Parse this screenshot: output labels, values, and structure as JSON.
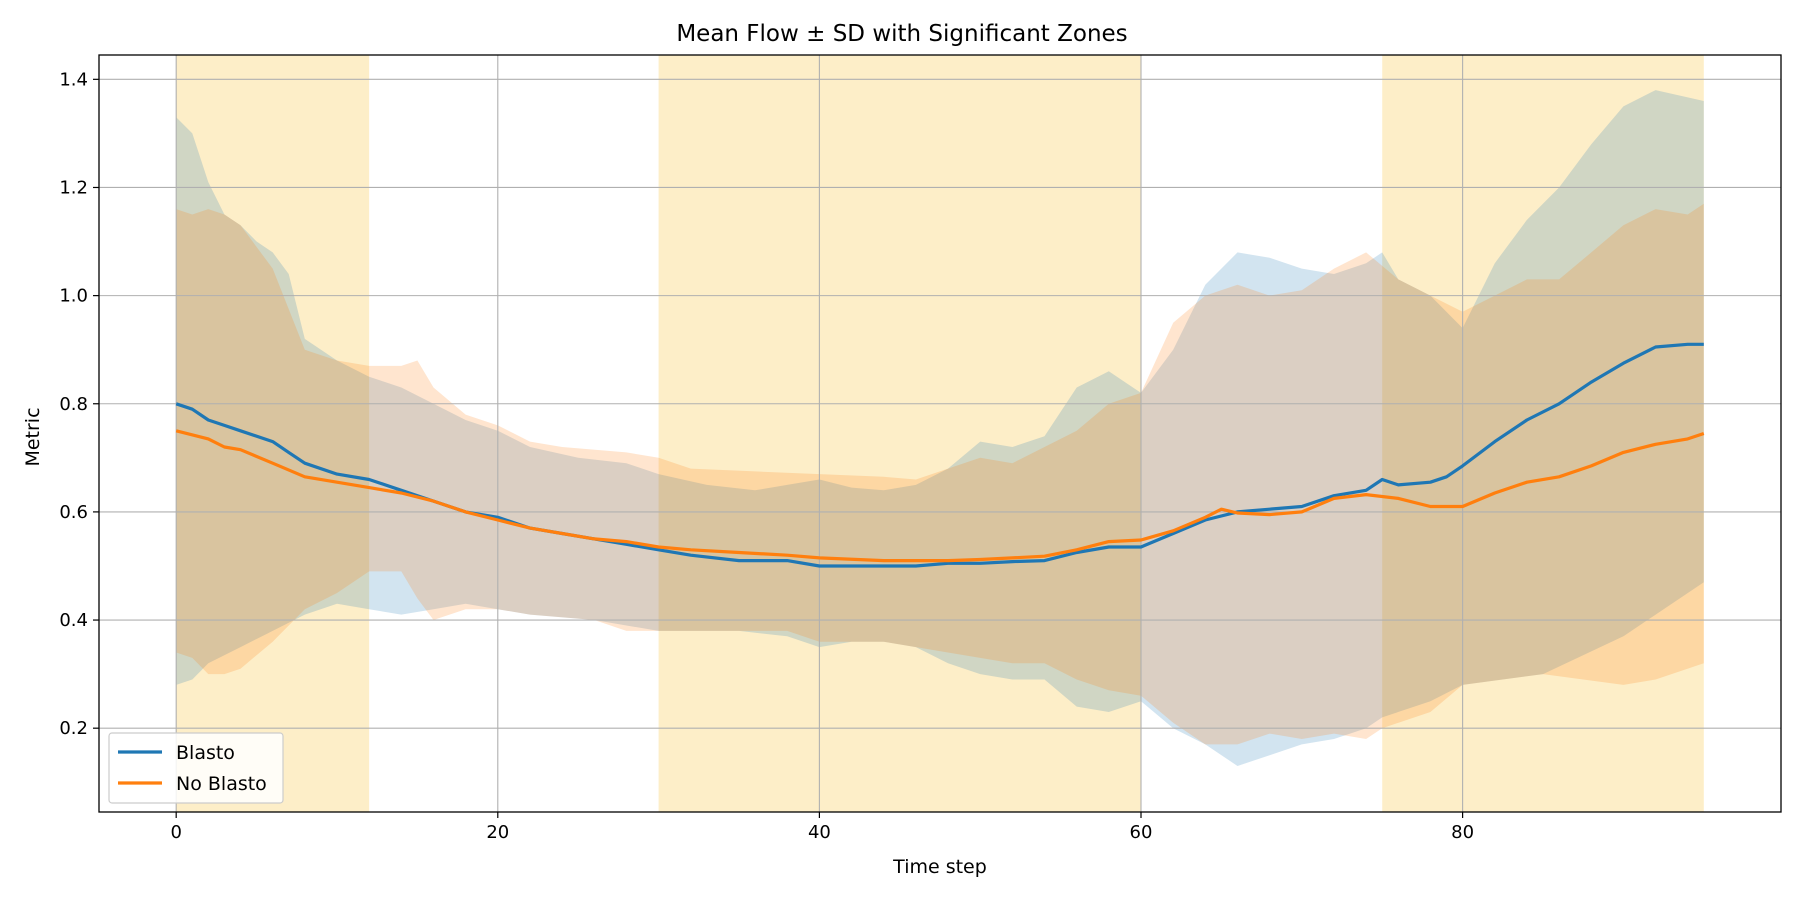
{
  "chart_data": {
    "type": "line",
    "title": "Mean Flow ± SD with Significant Zones",
    "xlabel": "Time step",
    "ylabel": "Metric",
    "xlim": [
      -4.8,
      99.8
    ],
    "ylim": [
      0.045,
      1.445
    ],
    "xticks": [
      0,
      20,
      40,
      60,
      80
    ],
    "yticks": [
      0.2,
      0.4,
      0.6,
      0.8,
      1.0,
      1.2,
      1.4
    ],
    "grid": true,
    "legend_position": "lower left",
    "significant_zones": [
      [
        0,
        12
      ],
      [
        30,
        60
      ],
      [
        75,
        95
      ]
    ],
    "zone_color": "#fde9b8",
    "series": [
      {
        "name": "Blasto",
        "color": "#1f77b4",
        "points": [
          [
            0,
            0.8
          ],
          [
            1,
            0.79
          ],
          [
            2,
            0.77
          ],
          [
            3,
            0.76
          ],
          [
            4,
            0.75
          ],
          [
            6,
            0.73
          ],
          [
            7,
            0.71
          ],
          [
            8,
            0.69
          ],
          [
            10,
            0.67
          ],
          [
            12,
            0.66
          ],
          [
            14,
            0.64
          ],
          [
            16,
            0.62
          ],
          [
            18,
            0.6
          ],
          [
            20,
            0.59
          ],
          [
            22,
            0.57
          ],
          [
            24,
            0.56
          ],
          [
            26,
            0.55
          ],
          [
            28,
            0.54
          ],
          [
            30,
            0.53
          ],
          [
            32,
            0.52
          ],
          [
            35,
            0.51
          ],
          [
            38,
            0.51
          ],
          [
            40,
            0.5
          ],
          [
            44,
            0.5
          ],
          [
            46,
            0.5
          ],
          [
            48,
            0.505
          ],
          [
            50,
            0.505
          ],
          [
            52,
            0.508
          ],
          [
            54,
            0.51
          ],
          [
            56,
            0.525
          ],
          [
            58,
            0.535
          ],
          [
            60,
            0.535
          ],
          [
            62,
            0.56
          ],
          [
            64,
            0.585
          ],
          [
            66,
            0.6
          ],
          [
            68,
            0.605
          ],
          [
            70,
            0.61
          ],
          [
            72,
            0.63
          ],
          [
            74,
            0.64
          ],
          [
            75,
            0.66
          ],
          [
            76,
            0.65
          ],
          [
            78,
            0.655
          ],
          [
            79,
            0.665
          ],
          [
            80,
            0.685
          ],
          [
            82,
            0.73
          ],
          [
            84,
            0.77
          ],
          [
            86,
            0.8
          ],
          [
            88,
            0.84
          ],
          [
            90,
            0.875
          ],
          [
            92,
            0.905
          ],
          [
            94,
            0.91
          ],
          [
            95,
            0.91
          ]
        ],
        "sd_lower": [
          [
            0,
            0.28
          ],
          [
            1,
            0.29
          ],
          [
            2,
            0.32
          ],
          [
            4,
            0.35
          ],
          [
            6,
            0.38
          ],
          [
            8,
            0.41
          ],
          [
            10,
            0.43
          ],
          [
            12,
            0.42
          ],
          [
            14,
            0.41
          ],
          [
            16,
            0.42
          ],
          [
            18,
            0.43
          ],
          [
            20,
            0.42
          ],
          [
            22,
            0.41
          ],
          [
            26,
            0.4
          ],
          [
            30,
            0.38
          ],
          [
            35,
            0.38
          ],
          [
            38,
            0.37
          ],
          [
            40,
            0.35
          ],
          [
            42,
            0.36
          ],
          [
            44,
            0.36
          ],
          [
            46,
            0.35
          ],
          [
            48,
            0.32
          ],
          [
            50,
            0.3
          ],
          [
            52,
            0.29
          ],
          [
            54,
            0.29
          ],
          [
            56,
            0.24
          ],
          [
            58,
            0.23
          ],
          [
            60,
            0.25
          ],
          [
            62,
            0.2
          ],
          [
            64,
            0.17
          ],
          [
            66,
            0.13
          ],
          [
            68,
            0.15
          ],
          [
            70,
            0.17
          ],
          [
            72,
            0.18
          ],
          [
            74,
            0.2
          ],
          [
            75,
            0.22
          ],
          [
            78,
            0.25
          ],
          [
            80,
            0.28
          ],
          [
            85,
            0.3
          ],
          [
            90,
            0.37
          ],
          [
            95,
            0.47
          ]
        ],
        "sd_upper": [
          [
            0,
            1.33
          ],
          [
            1,
            1.3
          ],
          [
            2,
            1.21
          ],
          [
            3,
            1.15
          ],
          [
            4,
            1.13
          ],
          [
            5,
            1.1
          ],
          [
            6,
            1.08
          ],
          [
            7,
            1.04
          ],
          [
            8,
            0.92
          ],
          [
            10,
            0.88
          ],
          [
            12,
            0.85
          ],
          [
            14,
            0.83
          ],
          [
            16,
            0.8
          ],
          [
            18,
            0.77
          ],
          [
            20,
            0.75
          ],
          [
            22,
            0.72
          ],
          [
            25,
            0.7
          ],
          [
            28,
            0.69
          ],
          [
            30,
            0.67
          ],
          [
            33,
            0.65
          ],
          [
            36,
            0.64
          ],
          [
            38,
            0.65
          ],
          [
            40,
            0.66
          ],
          [
            42,
            0.645
          ],
          [
            44,
            0.64
          ],
          [
            46,
            0.65
          ],
          [
            48,
            0.68
          ],
          [
            50,
            0.73
          ],
          [
            52,
            0.72
          ],
          [
            54,
            0.74
          ],
          [
            56,
            0.83
          ],
          [
            58,
            0.86
          ],
          [
            60,
            0.82
          ],
          [
            62,
            0.9
          ],
          [
            64,
            1.02
          ],
          [
            66,
            1.08
          ],
          [
            68,
            1.07
          ],
          [
            70,
            1.05
          ],
          [
            72,
            1.04
          ],
          [
            74,
            1.06
          ],
          [
            75,
            1.08
          ],
          [
            76,
            1.03
          ],
          [
            78,
            1.0
          ],
          [
            80,
            0.94
          ],
          [
            82,
            1.06
          ],
          [
            84,
            1.14
          ],
          [
            86,
            1.2
          ],
          [
            88,
            1.28
          ],
          [
            90,
            1.35
          ],
          [
            92,
            1.38
          ],
          [
            95,
            1.36
          ]
        ]
      },
      {
        "name": "No Blasto",
        "color": "#ff7f0e",
        "points": [
          [
            0,
            0.75
          ],
          [
            2,
            0.735
          ],
          [
            3,
            0.72
          ],
          [
            4,
            0.715
          ],
          [
            6,
            0.69
          ],
          [
            8,
            0.665
          ],
          [
            10,
            0.655
          ],
          [
            12,
            0.645
          ],
          [
            14,
            0.635
          ],
          [
            16,
            0.62
          ],
          [
            18,
            0.6
          ],
          [
            20,
            0.585
          ],
          [
            22,
            0.57
          ],
          [
            24,
            0.56
          ],
          [
            26,
            0.55
          ],
          [
            28,
            0.545
          ],
          [
            30,
            0.535
          ],
          [
            32,
            0.53
          ],
          [
            35,
            0.525
          ],
          [
            38,
            0.52
          ],
          [
            40,
            0.515
          ],
          [
            44,
            0.51
          ],
          [
            46,
            0.51
          ],
          [
            48,
            0.51
          ],
          [
            50,
            0.512
          ],
          [
            52,
            0.515
          ],
          [
            54,
            0.518
          ],
          [
            56,
            0.53
          ],
          [
            58,
            0.545
          ],
          [
            60,
            0.548
          ],
          [
            62,
            0.565
          ],
          [
            64,
            0.59
          ],
          [
            65,
            0.605
          ],
          [
            66,
            0.598
          ],
          [
            68,
            0.595
          ],
          [
            70,
            0.6
          ],
          [
            72,
            0.625
          ],
          [
            74,
            0.632
          ],
          [
            76,
            0.625
          ],
          [
            78,
            0.61
          ],
          [
            80,
            0.61
          ],
          [
            82,
            0.635
          ],
          [
            84,
            0.655
          ],
          [
            86,
            0.665
          ],
          [
            88,
            0.685
          ],
          [
            90,
            0.71
          ],
          [
            92,
            0.725
          ],
          [
            94,
            0.735
          ],
          [
            95,
            0.745
          ]
        ],
        "sd_lower": [
          [
            0,
            0.34
          ],
          [
            1,
            0.33
          ],
          [
            2,
            0.3
          ],
          [
            3,
            0.3
          ],
          [
            4,
            0.31
          ],
          [
            6,
            0.36
          ],
          [
            8,
            0.42
          ],
          [
            10,
            0.45
          ],
          [
            12,
            0.49
          ],
          [
            14,
            0.49
          ],
          [
            15,
            0.44
          ],
          [
            16,
            0.4
          ],
          [
            18,
            0.42
          ],
          [
            20,
            0.42
          ],
          [
            22,
            0.41
          ],
          [
            26,
            0.4
          ],
          [
            28,
            0.38
          ],
          [
            30,
            0.38
          ],
          [
            35,
            0.38
          ],
          [
            38,
            0.38
          ],
          [
            40,
            0.36
          ],
          [
            44,
            0.36
          ],
          [
            46,
            0.35
          ],
          [
            48,
            0.34
          ],
          [
            50,
            0.33
          ],
          [
            52,
            0.32
          ],
          [
            54,
            0.32
          ],
          [
            56,
            0.29
          ],
          [
            58,
            0.27
          ],
          [
            60,
            0.26
          ],
          [
            62,
            0.21
          ],
          [
            64,
            0.17
          ],
          [
            66,
            0.17
          ],
          [
            68,
            0.19
          ],
          [
            70,
            0.18
          ],
          [
            72,
            0.19
          ],
          [
            74,
            0.18
          ],
          [
            75,
            0.2
          ],
          [
            78,
            0.23
          ],
          [
            80,
            0.28
          ],
          [
            85,
            0.3
          ],
          [
            90,
            0.28
          ],
          [
            92,
            0.29
          ],
          [
            95,
            0.32
          ]
        ],
        "sd_upper": [
          [
            0,
            1.16
          ],
          [
            1,
            1.15
          ],
          [
            2,
            1.16
          ],
          [
            3,
            1.15
          ],
          [
            4,
            1.13
          ],
          [
            6,
            1.05
          ],
          [
            8,
            0.9
          ],
          [
            10,
            0.88
          ],
          [
            12,
            0.87
          ],
          [
            14,
            0.87
          ],
          [
            15,
            0.88
          ],
          [
            16,
            0.83
          ],
          [
            18,
            0.78
          ],
          [
            20,
            0.76
          ],
          [
            22,
            0.73
          ],
          [
            24,
            0.72
          ],
          [
            28,
            0.71
          ],
          [
            30,
            0.7
          ],
          [
            32,
            0.68
          ],
          [
            36,
            0.675
          ],
          [
            40,
            0.67
          ],
          [
            44,
            0.665
          ],
          [
            46,
            0.66
          ],
          [
            48,
            0.68
          ],
          [
            50,
            0.7
          ],
          [
            52,
            0.69
          ],
          [
            54,
            0.72
          ],
          [
            56,
            0.75
          ],
          [
            58,
            0.8
          ],
          [
            60,
            0.82
          ],
          [
            62,
            0.95
          ],
          [
            64,
            1.0
          ],
          [
            66,
            1.02
          ],
          [
            68,
            1.0
          ],
          [
            70,
            1.01
          ],
          [
            72,
            1.05
          ],
          [
            74,
            1.08
          ],
          [
            76,
            1.03
          ],
          [
            78,
            1.0
          ],
          [
            80,
            0.97
          ],
          [
            82,
            1.0
          ],
          [
            84,
            1.03
          ],
          [
            86,
            1.03
          ],
          [
            88,
            1.08
          ],
          [
            90,
            1.13
          ],
          [
            92,
            1.16
          ],
          [
            94,
            1.15
          ],
          [
            95,
            1.17
          ]
        ]
      }
    ]
  }
}
